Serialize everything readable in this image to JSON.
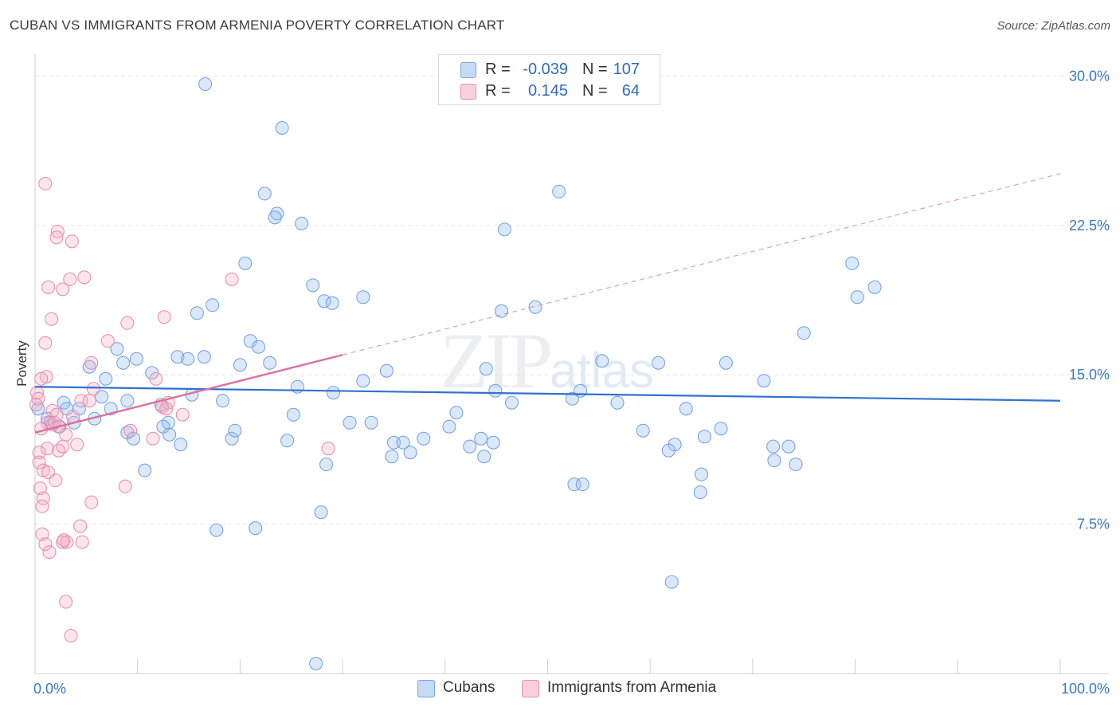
{
  "header": {
    "title": "CUBAN VS IMMIGRANTS FROM ARMENIA POVERTY CORRELATION CHART",
    "source": "Source: ZipAtlas.com"
  },
  "watermark": {
    "big": "ZIP",
    "small": "atlas"
  },
  "legend": {
    "rows": [
      {
        "r_label": "R =",
        "r_value": "-0.039",
        "n_label": "N =",
        "n_value": "107",
        "color": "#a9c8f0"
      },
      {
        "r_label": "R =",
        "r_value": "0.145",
        "n_label": "N =",
        "n_value": "64",
        "color": "#f6b6cb"
      }
    ]
  },
  "bottom_legend": {
    "items": [
      {
        "label": "Cubans",
        "color": "#a9c8f0"
      },
      {
        "label": "Immigrants from Armenia",
        "color": "#f6b6cb"
      }
    ]
  },
  "colors": {
    "blue_point_fill": "rgba(150,190,240,0.35)",
    "blue_point_stroke": "#6f9fdc",
    "pink_point_fill": "rgba(245,170,195,0.30)",
    "pink_point_stroke": "#e68aa8",
    "blue_line": "#2f72cf",
    "pink_line": "#e0709a",
    "grid": "#e6e6e6",
    "tick_label": "#3a77c7"
  },
  "chart_data": {
    "type": "scatter",
    "title": "CUBAN VS IMMIGRANTS FROM ARMENIA POVERTY CORRELATION CHART",
    "xlabel": "",
    "ylabel": "Poverty",
    "x_tick_labels": [
      "0.0%",
      "100.0%"
    ],
    "y_tick_labels": [
      "7.5%",
      "15.0%",
      "22.5%",
      "30.0%"
    ],
    "y_ticks": [
      7.5,
      15.0,
      22.5,
      30.0
    ],
    "xlim": [
      0,
      100
    ],
    "ylim": [
      0,
      30.7
    ],
    "grid": true,
    "legend_position": "top-center",
    "series": [
      {
        "name": "Cubans",
        "color": "#a9c8f0",
        "trend": {
          "x": [
            0,
            100
          ],
          "y": [
            14.4,
            13.7
          ],
          "style": "solid"
        },
        "points": [
          [
            16.6,
            29.6
          ],
          [
            24.1,
            27.4
          ],
          [
            22.4,
            24.1
          ],
          [
            23.6,
            23.1
          ],
          [
            23.4,
            22.9
          ],
          [
            26.0,
            22.6
          ],
          [
            51.1,
            24.2
          ],
          [
            45.8,
            22.3
          ],
          [
            20.5,
            20.6
          ],
          [
            27.1,
            19.5
          ],
          [
            28.2,
            18.7
          ],
          [
            29.0,
            18.6
          ],
          [
            32.0,
            18.9
          ],
          [
            17.3,
            18.5
          ],
          [
            15.8,
            18.1
          ],
          [
            45.5,
            18.2
          ],
          [
            48.8,
            18.4
          ],
          [
            79.7,
            20.6
          ],
          [
            80.2,
            18.9
          ],
          [
            81.9,
            19.4
          ],
          [
            75.0,
            17.1
          ],
          [
            21.0,
            16.7
          ],
          [
            21.8,
            16.4
          ],
          [
            8.0,
            16.3
          ],
          [
            9.9,
            15.8
          ],
          [
            13.9,
            15.9
          ],
          [
            14.9,
            15.8
          ],
          [
            16.5,
            15.9
          ],
          [
            8.6,
            15.6
          ],
          [
            5.3,
            15.4
          ],
          [
            20.0,
            15.5
          ],
          [
            34.3,
            15.2
          ],
          [
            44.0,
            15.3
          ],
          [
            55.3,
            15.7
          ],
          [
            60.8,
            15.6
          ],
          [
            67.4,
            15.6
          ],
          [
            6.9,
            14.8
          ],
          [
            11.4,
            15.1
          ],
          [
            25.6,
            14.4
          ],
          [
            32.0,
            14.7
          ],
          [
            44.9,
            14.2
          ],
          [
            53.2,
            14.2
          ],
          [
            71.1,
            14.7
          ],
          [
            29.1,
            14.1
          ],
          [
            15.3,
            14.0
          ],
          [
            6.5,
            13.9
          ],
          [
            2.8,
            13.6
          ],
          [
            3.1,
            13.3
          ],
          [
            4.3,
            13.3
          ],
          [
            7.4,
            13.3
          ],
          [
            9.0,
            13.7
          ],
          [
            18.3,
            13.7
          ],
          [
            12.3,
            13.5
          ],
          [
            46.5,
            13.6
          ],
          [
            41.1,
            13.1
          ],
          [
            52.4,
            13.8
          ],
          [
            56.8,
            13.6
          ],
          [
            63.5,
            13.3
          ],
          [
            25.2,
            13.0
          ],
          [
            1.2,
            12.8
          ],
          [
            1.5,
            12.6
          ],
          [
            2.4,
            12.4
          ],
          [
            3.8,
            12.6
          ],
          [
            5.8,
            12.8
          ],
          [
            13.0,
            12.6
          ],
          [
            12.5,
            12.4
          ],
          [
            30.7,
            12.6
          ],
          [
            32.8,
            12.6
          ],
          [
            40.4,
            12.4
          ],
          [
            13.1,
            12.0
          ],
          [
            9.0,
            12.1
          ],
          [
            9.6,
            11.8
          ],
          [
            14.2,
            11.5
          ],
          [
            19.2,
            11.8
          ],
          [
            19.5,
            12.2
          ],
          [
            24.6,
            11.7
          ],
          [
            35.0,
            11.6
          ],
          [
            35.9,
            11.6
          ],
          [
            36.6,
            11.1
          ],
          [
            37.9,
            11.8
          ],
          [
            42.4,
            11.4
          ],
          [
            43.5,
            11.8
          ],
          [
            44.7,
            11.6
          ],
          [
            59.3,
            12.2
          ],
          [
            62.4,
            11.5
          ],
          [
            61.8,
            11.2
          ],
          [
            65.3,
            11.9
          ],
          [
            66.9,
            12.3
          ],
          [
            72.0,
            11.4
          ],
          [
            73.5,
            11.4
          ],
          [
            34.8,
            10.9
          ],
          [
            43.8,
            10.9
          ],
          [
            72.1,
            10.7
          ],
          [
            74.2,
            10.5
          ],
          [
            28.4,
            10.5
          ],
          [
            10.7,
            10.2
          ],
          [
            65.0,
            10.0
          ],
          [
            52.6,
            9.5
          ],
          [
            53.4,
            9.5
          ],
          [
            64.9,
            9.1
          ],
          [
            27.9,
            8.1
          ],
          [
            17.7,
            7.2
          ],
          [
            21.5,
            7.3
          ],
          [
            62.1,
            4.6
          ],
          [
            27.4,
            0.5
          ],
          [
            0.3,
            13.3
          ],
          [
            22.9,
            15.6
          ]
        ]
      },
      {
        "name": "Immigrants from Armenia",
        "color": "#f6b6cb",
        "trend": {
          "x": [
            0,
            30
          ],
          "y": [
            12.1,
            16.0
          ],
          "style": "solid",
          "extended": {
            "x": [
              30,
              100
            ],
            "y": [
              16.0,
              25.1
            ],
            "style": "dashed"
          }
        },
        "points": [
          [
            1.0,
            24.6
          ],
          [
            2.2,
            22.2
          ],
          [
            2.1,
            21.9
          ],
          [
            3.6,
            21.7
          ],
          [
            3.4,
            19.8
          ],
          [
            4.8,
            19.9
          ],
          [
            1.3,
            19.4
          ],
          [
            2.7,
            19.3
          ],
          [
            19.2,
            19.8
          ],
          [
            1.6,
            17.8
          ],
          [
            12.6,
            17.9
          ],
          [
            9.0,
            17.6
          ],
          [
            1.0,
            16.6
          ],
          [
            7.1,
            16.7
          ],
          [
            5.5,
            15.6
          ],
          [
            1.1,
            14.9
          ],
          [
            0.6,
            14.8
          ],
          [
            11.8,
            14.8
          ],
          [
            5.7,
            14.3
          ],
          [
            0.2,
            14.1
          ],
          [
            0.3,
            13.8
          ],
          [
            4.5,
            13.7
          ],
          [
            5.3,
            13.7
          ],
          [
            13.0,
            13.6
          ],
          [
            12.4,
            13.4
          ],
          [
            1.7,
            13.2
          ],
          [
            2.1,
            13.0
          ],
          [
            1.2,
            12.6
          ],
          [
            3.7,
            12.9
          ],
          [
            12.8,
            13.3
          ],
          [
            14.4,
            13.0
          ],
          [
            1.7,
            12.5
          ],
          [
            2.3,
            12.4
          ],
          [
            3.0,
            12.0
          ],
          [
            9.3,
            12.2
          ],
          [
            11.5,
            11.8
          ],
          [
            4.1,
            11.5
          ],
          [
            1.2,
            11.3
          ],
          [
            2.3,
            11.2
          ],
          [
            0.4,
            11.1
          ],
          [
            28.6,
            11.3
          ],
          [
            0.4,
            10.6
          ],
          [
            0.8,
            10.2
          ],
          [
            1.3,
            10.1
          ],
          [
            2.0,
            9.7
          ],
          [
            0.5,
            9.3
          ],
          [
            8.8,
            9.4
          ],
          [
            0.8,
            8.8
          ],
          [
            0.7,
            8.4
          ],
          [
            5.5,
            8.6
          ],
          [
            4.4,
            7.4
          ],
          [
            0.7,
            7.0
          ],
          [
            2.8,
            6.7
          ],
          [
            3.1,
            6.6
          ],
          [
            4.6,
            6.6
          ],
          [
            2.7,
            6.6
          ],
          [
            1.0,
            6.5
          ],
          [
            1.4,
            6.1
          ],
          [
            3.0,
            3.6
          ],
          [
            3.5,
            1.9
          ],
          [
            0.1,
            13.5
          ],
          [
            0.6,
            12.3
          ],
          [
            2.7,
            11.4
          ],
          [
            1.9,
            12.6
          ]
        ]
      }
    ]
  }
}
